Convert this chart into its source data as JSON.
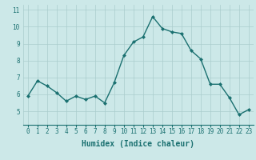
{
  "x": [
    0,
    1,
    2,
    3,
    4,
    5,
    6,
    7,
    8,
    9,
    10,
    11,
    12,
    13,
    14,
    15,
    16,
    17,
    18,
    19,
    20,
    21,
    22,
    23
  ],
  "y": [
    5.9,
    6.8,
    6.5,
    6.1,
    5.6,
    5.9,
    5.7,
    5.9,
    5.5,
    6.7,
    8.3,
    9.1,
    9.4,
    10.6,
    9.9,
    9.7,
    9.6,
    8.6,
    8.1,
    6.6,
    6.6,
    5.8,
    4.8,
    5.1
  ],
  "line_color": "#1a7070",
  "marker": "D",
  "markersize": 2.0,
  "linewidth": 1.0,
  "xlabel": "Humidex (Indice chaleur)",
  "xlabel_fontsize": 7,
  "background_color": "#cce8e8",
  "grid_color": "#aacccc",
  "ylim": [
    4.2,
    11.3
  ],
  "yticks": [
    5,
    6,
    7,
    8,
    9,
    10,
    11
  ],
  "xticks": [
    0,
    1,
    2,
    3,
    4,
    5,
    6,
    7,
    8,
    9,
    10,
    11,
    12,
    13,
    14,
    15,
    16,
    17,
    18,
    19,
    20,
    21,
    22,
    23
  ],
  "tick_fontsize": 5.5,
  "tick_color": "#1a7070"
}
